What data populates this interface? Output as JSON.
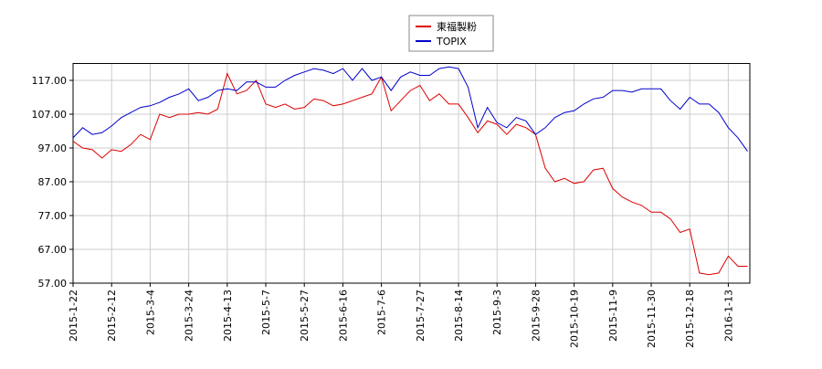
{
  "chart_data": {
    "type": "line",
    "categories": [
      "2015-1-22",
      null,
      null,
      null,
      "2015-2-12",
      null,
      null,
      null,
      "2015-3-4",
      null,
      null,
      null,
      "2015-3-24",
      null,
      null,
      null,
      "2015-4-13",
      null,
      null,
      null,
      "2015-5-7",
      null,
      null,
      null,
      "2015-5-27",
      null,
      null,
      null,
      "2015-6-16",
      null,
      null,
      null,
      "2015-7-6",
      null,
      null,
      null,
      "2015-7-27",
      null,
      null,
      null,
      "2015-8-14",
      null,
      null,
      null,
      "2015-9-3",
      null,
      null,
      null,
      "2015-9-28",
      null,
      null,
      null,
      "2015-10-19",
      null,
      null,
      null,
      "2015-11-9",
      null,
      null,
      null,
      "2015-11-30",
      null,
      null,
      null,
      "2015-12-18",
      null,
      null,
      null,
      "2016-1-13",
      null,
      null
    ],
    "series": [
      {
        "name": "東福製粉",
        "color": "#dd0000",
        "values": [
          99,
          97,
          96.5,
          94,
          96.5,
          96,
          98,
          101,
          99.5,
          107,
          106,
          107,
          107,
          107.5,
          107,
          108.5,
          119,
          113,
          114,
          117,
          110,
          109,
          110,
          108.5,
          109,
          111.5,
          111,
          109.5,
          110,
          111,
          112,
          113,
          118,
          108,
          111,
          114,
          115.5,
          111,
          113,
          110,
          110,
          106,
          101.5,
          105,
          104,
          101,
          104,
          103,
          101,
          91,
          87,
          88,
          86.5,
          87,
          90.5,
          91,
          85,
          82.5,
          81,
          80,
          78,
          78,
          76,
          72,
          73,
          60,
          59.5,
          60,
          65,
          62,
          62
        ]
      },
      {
        "name": "TOPIX",
        "color": "#0000cc",
        "values": [
          100,
          103,
          101,
          101.5,
          103.5,
          106,
          107.5,
          109,
          109.5,
          110.5,
          112,
          113,
          114.5,
          111,
          112,
          114,
          114.5,
          114,
          116.5,
          116.5,
          115,
          115,
          117,
          118.5,
          119.5,
          120.5,
          120,
          119,
          120.5,
          117,
          120.5,
          117,
          118,
          114,
          118,
          119.5,
          118.5,
          118.5,
          120.5,
          121,
          120.5,
          115,
          103,
          109,
          104.5,
          103,
          106,
          105,
          101,
          103,
          106,
          107.5,
          108,
          110,
          111.5,
          112,
          114,
          114,
          113.5,
          114.5,
          114.5,
          114.5,
          111,
          108.5,
          112,
          110,
          110,
          107.5,
          103,
          100,
          96
        ]
      }
    ],
    "ylim": [
      57,
      122
    ],
    "yticks": [
      {
        "value": 57,
        "label": "57.00"
      },
      {
        "value": 67,
        "label": "67.00"
      },
      {
        "value": 77,
        "label": "77.00"
      },
      {
        "value": 87,
        "label": "87.00"
      },
      {
        "value": 97,
        "label": "97.00"
      },
      {
        "value": 107,
        "label": "107.00"
      },
      {
        "value": 117,
        "label": "117.00"
      }
    ],
    "grid": true
  }
}
